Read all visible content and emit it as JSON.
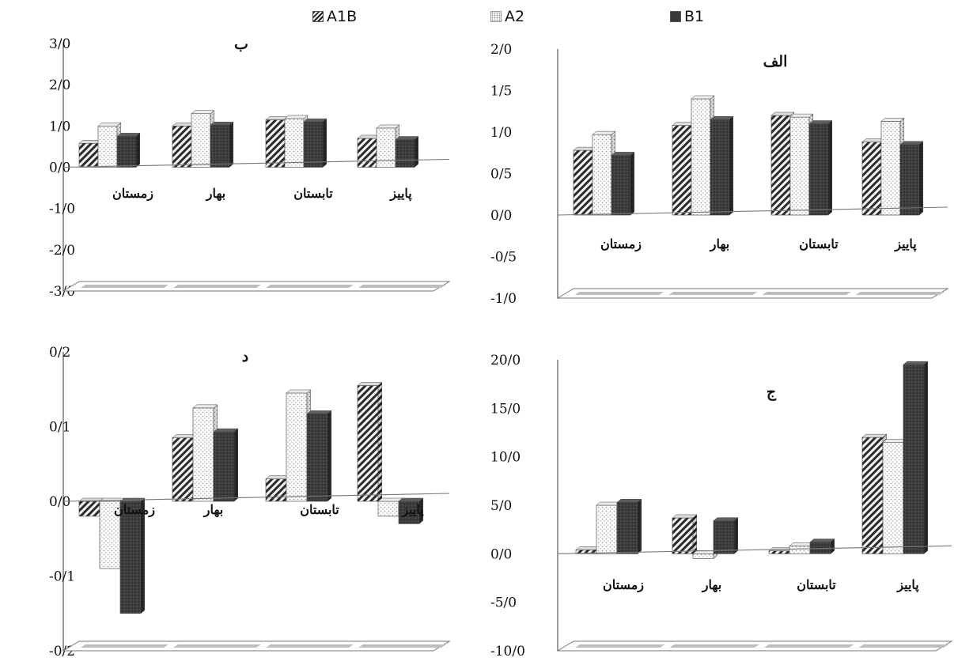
{
  "legend": [
    {
      "name": "A1B",
      "pattern": "hatch"
    },
    {
      "name": "A2",
      "pattern": "dots"
    },
    {
      "name": "B1",
      "pattern": "dark"
    }
  ],
  "colors": {
    "hatch_fg": "#2b2b2b",
    "hatch_bg": "#f4f4f4",
    "dots_bg": "#fbfbfb",
    "dots_fg": "#9a9a9a",
    "dark": "#3a3a3a",
    "axis": "#555555"
  },
  "chart_data": [
    {
      "type": "bar",
      "title": "الف",
      "categories": [
        "زمستان",
        "بهار",
        "تابستان",
        "پاییز"
      ],
      "series": [
        {
          "name": "A1B",
          "values": [
            0.78,
            1.08,
            1.2,
            0.88
          ]
        },
        {
          "name": "A2",
          "values": [
            0.97,
            1.4,
            1.18,
            1.13
          ]
        },
        {
          "name": "B1",
          "values": [
            0.72,
            1.15,
            1.1,
            0.85
          ]
        }
      ],
      "ylim": [
        -1.0,
        2.0
      ],
      "yticks": [
        "2/0",
        "1/5",
        "1/0",
        "0/5",
        "0/0",
        "-0/5",
        "-1/0"
      ]
    },
    {
      "type": "bar",
      "title": "ب",
      "categories": [
        "زمستان",
        "بهار",
        "تابستان",
        "پاییز"
      ],
      "series": [
        {
          "name": "A1B",
          "values": [
            0.58,
            1.0,
            1.15,
            0.7
          ]
        },
        {
          "name": "A2",
          "values": [
            1.0,
            1.3,
            1.18,
            0.95
          ]
        },
        {
          "name": "B1",
          "values": [
            0.75,
            1.02,
            1.1,
            0.67
          ]
        }
      ],
      "ylim": [
        -3.0,
        3.0
      ],
      "yticks": [
        "3/0",
        "2/0",
        "1/0",
        "0/0",
        "-1/0",
        "-2/0",
        "-3/0"
      ]
    },
    {
      "type": "bar",
      "title": "ج",
      "categories": [
        "زمستان",
        "بهار",
        "تابستان",
        "پاییز"
      ],
      "series": [
        {
          "name": "A1B",
          "values": [
            0.4,
            3.7,
            0.3,
            12.0
          ]
        },
        {
          "name": "A2",
          "values": [
            5.0,
            -0.5,
            0.8,
            11.5
          ]
        },
        {
          "name": "B1",
          "values": [
            5.3,
            3.4,
            1.2,
            19.5
          ]
        }
      ],
      "ylim": [
        -10.0,
        20.0
      ],
      "yticks": [
        "20/0",
        "15/0",
        "10/0",
        "5/0",
        "0/0",
        "-5/0",
        "-10/0"
      ]
    },
    {
      "type": "bar",
      "title": "د",
      "categories": [
        "زمستان",
        "بهار",
        "تابستان",
        "پاییز"
      ],
      "series": [
        {
          "name": "A1B",
          "values": [
            -0.02,
            0.085,
            0.03,
            0.155
          ]
        },
        {
          "name": "A2",
          "values": [
            -0.09,
            0.125,
            0.145,
            -0.02
          ]
        },
        {
          "name": "B1",
          "values": [
            -0.15,
            0.093,
            0.117,
            -0.03
          ]
        }
      ],
      "ylim": [
        -0.2,
        0.2
      ],
      "yticks": [
        "0/2",
        "0/1",
        "0/0",
        "-0/1",
        "-0/2"
      ]
    }
  ]
}
